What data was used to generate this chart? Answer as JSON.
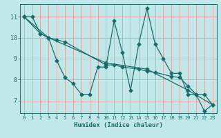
{
  "title": "",
  "xlabel": "Humidex (Indice chaleur)",
  "background_color": "#c0e8e8",
  "grid_color": "#e8a0a0",
  "line_color": "#1a6b6b",
  "xlim": [
    -0.5,
    23.5
  ],
  "ylim": [
    6.4,
    11.6
  ],
  "xticks": [
    0,
    1,
    2,
    3,
    4,
    5,
    6,
    7,
    8,
    9,
    10,
    11,
    12,
    13,
    14,
    15,
    16,
    17,
    18,
    19,
    20,
    21,
    22,
    23
  ],
  "yticks": [
    7,
    8,
    9,
    10,
    11
  ],
  "line1_x": [
    0,
    1,
    2,
    3,
    4,
    5,
    6,
    7,
    8,
    9,
    10,
    11,
    12,
    13,
    14,
    15,
    16,
    17,
    18,
    19,
    20,
    21,
    22,
    23
  ],
  "line1_y": [
    11.0,
    11.0,
    10.2,
    10.0,
    8.9,
    8.1,
    7.8,
    7.3,
    7.3,
    8.6,
    8.6,
    10.8,
    9.3,
    7.5,
    9.7,
    11.4,
    9.7,
    9.0,
    8.3,
    8.3,
    7.3,
    7.3,
    6.5,
    6.8
  ],
  "line2_x": [
    0,
    2,
    3,
    4,
    5,
    10,
    11,
    12,
    14,
    15,
    16,
    18,
    19,
    20,
    21,
    22,
    23
  ],
  "line2_y": [
    11.0,
    10.2,
    10.0,
    9.9,
    9.8,
    8.7,
    8.7,
    8.6,
    8.5,
    8.4,
    8.35,
    8.15,
    8.1,
    7.7,
    7.3,
    7.3,
    6.8
  ],
  "line3_x": [
    0,
    3,
    10,
    15,
    20,
    23
  ],
  "line3_y": [
    11.0,
    10.0,
    8.8,
    8.5,
    7.5,
    6.8
  ]
}
